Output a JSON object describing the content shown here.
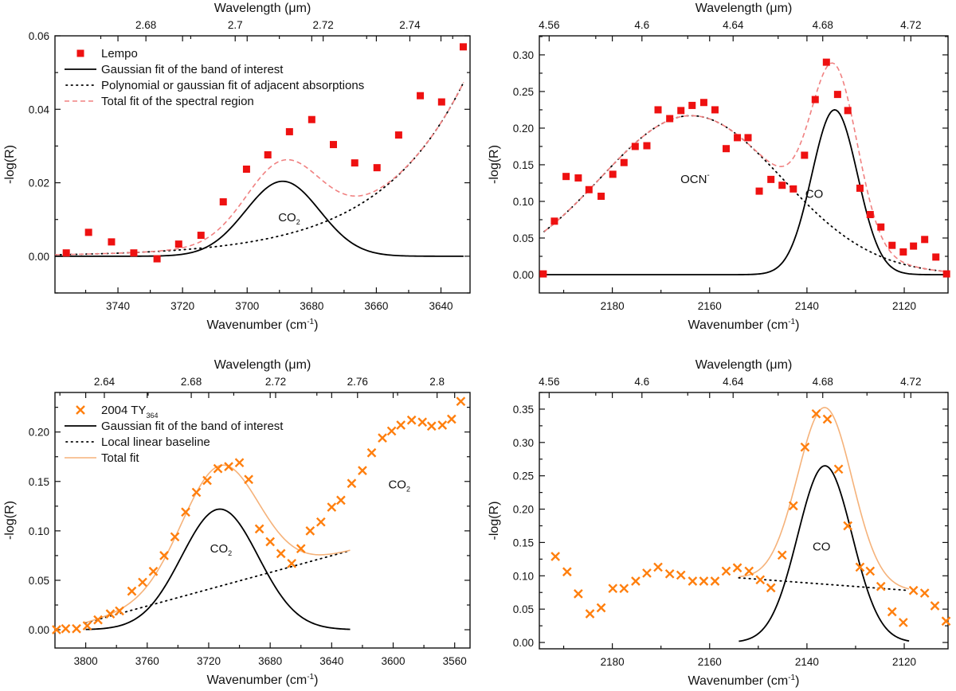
{
  "chart_data": [
    {
      "id": "top-left",
      "type": "scatter",
      "title": "",
      "xlabel": "Wavenumber (cm⁻¹)",
      "xlabel_base": "Wavenumber (cm",
      "xlabel_sup": "-1",
      "ylabel": "-log(R)",
      "top_xlabel": "Wavelength (μm)",
      "xlim": [
        3759.5,
        3631
      ],
      "ylim": [
        -0.01,
        0.06
      ],
      "xticks": [
        3740,
        3720,
        3700,
        3680,
        3660,
        3640
      ],
      "xminor": [
        3750,
        3730,
        3710,
        3690,
        3670,
        3650,
        3630
      ],
      "yticks": [
        0.0,
        0.02,
        0.04,
        0.06
      ],
      "ytick_labels": [
        "0.00",
        "0.02",
        "0.04",
        "0.06"
      ],
      "yminor": [
        -0.01,
        0.01,
        0.03,
        0.05
      ],
      "top_ticks": [
        2.68,
        2.7,
        2.72,
        2.74
      ],
      "top_tick_labels": [
        "2.68",
        "2.7",
        "2.72",
        "2.74"
      ],
      "top_minor": [
        2.67,
        2.69,
        2.71,
        2.73,
        2.75
      ],
      "legend_position": "top-left",
      "marker": "square",
      "marker_color": "#ee1111",
      "fit_color": "#f08080",
      "fit_style": "dashed",
      "legend": [
        {
          "kind": "marker",
          "label": "Lempo"
        },
        {
          "kind": "solid",
          "label": "Gaussian fit of the band of interest"
        },
        {
          "kind": "dotted",
          "label": "Polynomial or gaussian fit of adjacent absorptions"
        },
        {
          "kind": "fit",
          "label": "Total fit of the spectral region"
        }
      ],
      "annotations": [
        {
          "text": "CO",
          "sub": "2",
          "x": 3687,
          "y": 0.0095
        }
      ],
      "points": {
        "x": [
          3756.0,
          3749.1,
          3742.0,
          3735.1,
          3727.9,
          3721.2,
          3714.3,
          3707.4,
          3700.2,
          3693.6,
          3686.9,
          3680.0,
          3673.3,
          3666.7,
          3659.8,
          3653.1,
          3646.4,
          3639.8,
          3633.1
        ],
        "y": [
          0.0009,
          0.0065,
          0.0039,
          0.0009,
          -0.0007,
          0.0033,
          0.0057,
          0.0148,
          0.0237,
          0.0276,
          0.0339,
          0.0372,
          0.0304,
          0.0254,
          0.0241,
          0.033,
          0.0437,
          0.042,
          0.057
        ]
      },
      "gaussian": {
        "center": 3689,
        "amplitude": 0.0204,
        "sigma": 11.5,
        "from": 3759.5,
        "to": 3633,
        "offset": 0
      },
      "background": {
        "kind": "exp",
        "from": 3759.5,
        "to": 3633,
        "a": 0.0004,
        "x0": 3759.5,
        "scale": 26.5,
        "base": 0.0
      },
      "total_fit": {
        "from": 3759.5,
        "to": 3633
      }
    },
    {
      "id": "top-right",
      "type": "scatter",
      "title": "",
      "xlabel": "Wavenumber (cm⁻¹)",
      "xlabel_base": "Wavenumber (cm",
      "xlabel_sup": "-1",
      "ylabel": "-log(R)",
      "top_xlabel": "Wavelength (μm)",
      "xlim": [
        2195,
        2111
      ],
      "ylim": [
        -0.025,
        0.326
      ],
      "xticks": [
        2180,
        2160,
        2140,
        2120
      ],
      "xminor": [
        2190,
        2170,
        2150,
        2130
      ],
      "yticks": [
        0.0,
        0.05,
        0.1,
        0.15,
        0.2,
        0.25,
        0.3
      ],
      "ytick_labels": [
        "0.00",
        "0.05",
        "0.10",
        "0.15",
        "0.20",
        "0.25",
        "0.30"
      ],
      "yminor": [
        0.025,
        0.075,
        0.125,
        0.175,
        0.225,
        0.275,
        0.325
      ],
      "top_ticks": [
        4.56,
        4.6,
        4.64,
        4.68,
        4.72
      ],
      "top_tick_labels": [
        "4.56",
        "4.6",
        "4.64",
        "4.68",
        "4.72"
      ],
      "top_minor": [
        4.58,
        4.62,
        4.66,
        4.7
      ],
      "legend_position": "none",
      "marker": "square",
      "marker_color": "#ee1111",
      "fit_color": "#f08080",
      "fit_style": "dashed",
      "legend": [],
      "annotations": [
        {
          "text": "OCN",
          "sup": "-",
          "x": 2163,
          "y": 0.125
        },
        {
          "text": "CO",
          "x": 2138.5,
          "y": 0.105
        }
      ],
      "points": {
        "x": [
          2194.2,
          2191.9,
          2189.5,
          2187.0,
          2184.8,
          2182.3,
          2179.9,
          2177.6,
          2175.3,
          2172.9,
          2170.6,
          2168.2,
          2165.9,
          2163.6,
          2161.2,
          2158.9,
          2156.6,
          2154.3,
          2152.1,
          2149.8,
          2147.4,
          2145.1,
          2142.8,
          2140.5,
          2138.3,
          2136.0,
          2133.7,
          2131.6,
          2129.1,
          2127.0,
          2124.8,
          2122.5,
          2120.2,
          2118.1,
          2115.8,
          2113.5,
          2111.3
        ],
        "y": [
          0.001,
          0.073,
          0.134,
          0.132,
          0.116,
          0.107,
          0.137,
          0.153,
          0.175,
          0.176,
          0.225,
          0.213,
          0.224,
          0.231,
          0.235,
          0.225,
          0.172,
          0.187,
          0.187,
          0.114,
          0.13,
          0.122,
          0.117,
          0.163,
          0.239,
          0.29,
          0.246,
          0.224,
          0.118,
          0.082,
          0.065,
          0.04,
          0.031,
          0.039,
          0.048,
          0.024,
          0.001
        ]
      },
      "gaussian": {
        "center": 2134.3,
        "amplitude": 0.225,
        "sigma": 4.7,
        "from": 2194,
        "to": 2111.5,
        "offset": 0
      },
      "background": {
        "kind": "gauss",
        "center": 2163.8,
        "amplitude": 0.217,
        "sigma": 18.7,
        "from": 2194,
        "to": 2111.5
      },
      "total_fit": {
        "from": 2194,
        "to": 2111.5
      }
    },
    {
      "id": "bottom-left",
      "type": "scatter",
      "title": "",
      "xlabel": "Wavenumber (cm⁻¹)",
      "xlabel_base": "Wavenumber (cm",
      "xlabel_sup": "-1",
      "ylabel": "-log(R)",
      "top_xlabel": "Wavelength (μm)",
      "xlim": [
        3820,
        3550
      ],
      "ylim": [
        -0.0185,
        0.24
      ],
      "xticks": [
        3800,
        3760,
        3720,
        3680,
        3640,
        3600,
        3560
      ],
      "xminor": [
        3780,
        3740,
        3700,
        3660,
        3620,
        3580
      ],
      "yticks": [
        0.0,
        0.05,
        0.1,
        0.15,
        0.2
      ],
      "ytick_labels": [
        "0.00",
        "0.05",
        "0.10",
        "0.15",
        "0.20"
      ],
      "yminor": [
        0.025,
        0.075,
        0.125,
        0.175,
        0.225
      ],
      "top_ticks": [
        2.64,
        2.68,
        2.72,
        2.76,
        2.8
      ],
      "top_tick_labels": [
        "2.64",
        "2.68",
        "2.72",
        "2.76",
        "2.8"
      ],
      "top_minor": [
        2.62,
        2.66,
        2.7,
        2.74,
        2.78
      ],
      "legend_position": "top-left",
      "marker": "cross",
      "marker_color": "#ff7f0e",
      "fit_color": "#f5b27a",
      "fit_style": "solid",
      "legend": [
        {
          "kind": "marker",
          "label": "2004 TY",
          "sub": "364"
        },
        {
          "kind": "solid",
          "label": "Gaussian fit of the band of interest"
        },
        {
          "kind": "dotted",
          "label": "Local linear baseline"
        },
        {
          "kind": "fit",
          "label": "Total fit"
        }
      ],
      "annotations": [
        {
          "text": "CO",
          "sub": "2",
          "x": 3712,
          "y": 0.078
        },
        {
          "text": "CO",
          "sub": "2",
          "x": 3596,
          "y": 0.143
        }
      ],
      "points": {
        "x": [
          3819,
          3813,
          3806,
          3799,
          3792,
          3784,
          3778,
          3770,
          3763,
          3756,
          3749,
          3742,
          3735,
          3728,
          3721,
          3714,
          3707,
          3700,
          3694,
          3687,
          3680,
          3673,
          3666,
          3660,
          3654,
          3647,
          3640,
          3634,
          3627,
          3620,
          3614,
          3607,
          3601,
          3595,
          3588,
          3581,
          3575,
          3568,
          3562,
          3556
        ],
        "y": [
          0.0,
          0.001,
          0.001,
          0.004,
          0.01,
          0.016,
          0.019,
          0.039,
          0.048,
          0.059,
          0.075,
          0.094,
          0.119,
          0.139,
          0.151,
          0.163,
          0.165,
          0.169,
          0.152,
          0.102,
          0.089,
          0.077,
          0.067,
          0.082,
          0.1,
          0.109,
          0.124,
          0.131,
          0.148,
          0.161,
          0.179,
          0.194,
          0.201,
          0.207,
          0.212,
          0.21,
          0.206,
          0.207,
          0.213,
          0.231
        ]
      },
      "gaussian": {
        "center": 3712.7,
        "amplitude": 0.122,
        "sigma": 25,
        "from": 3800,
        "to": 3628,
        "offset": 0
      },
      "background": {
        "kind": "linear",
        "from": 3800,
        "to": 3628,
        "y_from": 0.007,
        "y_to": 0.08
      },
      "total_fit": {
        "from": 3800,
        "to": 3628
      }
    },
    {
      "id": "bottom-right",
      "type": "scatter",
      "title": "",
      "xlabel": "Wavenumber (cm⁻¹)",
      "xlabel_base": "Wavenumber (cm",
      "xlabel_sup": "-1",
      "ylabel": "-log(R)",
      "top_xlabel": "Wavelength (μm)",
      "xlim": [
        2195,
        2111
      ],
      "ylim": [
        -0.0095,
        0.375
      ],
      "xticks": [
        2180,
        2160,
        2140,
        2120
      ],
      "xminor": [
        2190,
        2170,
        2150,
        2130
      ],
      "yticks": [
        0.0,
        0.05,
        0.1,
        0.15,
        0.2,
        0.25,
        0.3,
        0.35
      ],
      "ytick_labels": [
        "0.00",
        "0.05",
        "0.10",
        "0.15",
        "0.20",
        "0.25",
        "0.30",
        "0.35"
      ],
      "yminor": [
        0.025,
        0.075,
        0.125,
        0.175,
        0.225,
        0.275,
        0.325,
        0.375
      ],
      "top_ticks": [
        4.56,
        4.6,
        4.64,
        4.68,
        4.72
      ],
      "top_tick_labels": [
        "4.56",
        "4.6",
        "4.64",
        "4.68",
        "4.72"
      ],
      "top_minor": [
        4.58,
        4.62,
        4.66,
        4.7
      ],
      "legend_position": "none",
      "marker": "cross",
      "marker_color": "#ff7f0e",
      "fit_color": "#f5b27a",
      "fit_style": "solid",
      "legend": [],
      "annotations": [
        {
          "text": "CO",
          "x": 2137,
          "y": 0.138
        }
      ],
      "points": {
        "x": [
          2191.7,
          2189.3,
          2187.0,
          2184.6,
          2182.3,
          2179.9,
          2177.6,
          2175.2,
          2172.9,
          2170.6,
          2168.2,
          2165.9,
          2163.5,
          2161.2,
          2158.9,
          2156.6,
          2154.3,
          2151.9,
          2149.6,
          2147.4,
          2145.1,
          2142.8,
          2140.4,
          2138.1,
          2135.8,
          2133.5,
          2131.6,
          2129.1,
          2127.0,
          2124.8,
          2122.5,
          2120.2,
          2118.1,
          2115.8,
          2113.7,
          2111.4
        ],
        "y": [
          0.129,
          0.106,
          0.073,
          0.043,
          0.052,
          0.081,
          0.081,
          0.092,
          0.104,
          0.113,
          0.103,
          0.101,
          0.092,
          0.092,
          0.092,
          0.107,
          0.112,
          0.107,
          0.094,
          0.082,
          0.131,
          0.205,
          0.293,
          0.343,
          0.335,
          0.26,
          0.175,
          0.113,
          0.107,
          0.084,
          0.046,
          0.03,
          0.078,
          0.074,
          0.055,
          0.032
        ]
      },
      "gaussian": {
        "center": 2136.3,
        "amplitude": 0.265,
        "sigma": 5.6,
        "from": 2154,
        "to": 2119,
        "offset": 0
      },
      "background": {
        "kind": "linear",
        "from": 2154,
        "to": 2119,
        "y_from": 0.097,
        "y_to": 0.078
      },
      "total_fit": {
        "from": 2154,
        "to": 2119
      }
    }
  ]
}
